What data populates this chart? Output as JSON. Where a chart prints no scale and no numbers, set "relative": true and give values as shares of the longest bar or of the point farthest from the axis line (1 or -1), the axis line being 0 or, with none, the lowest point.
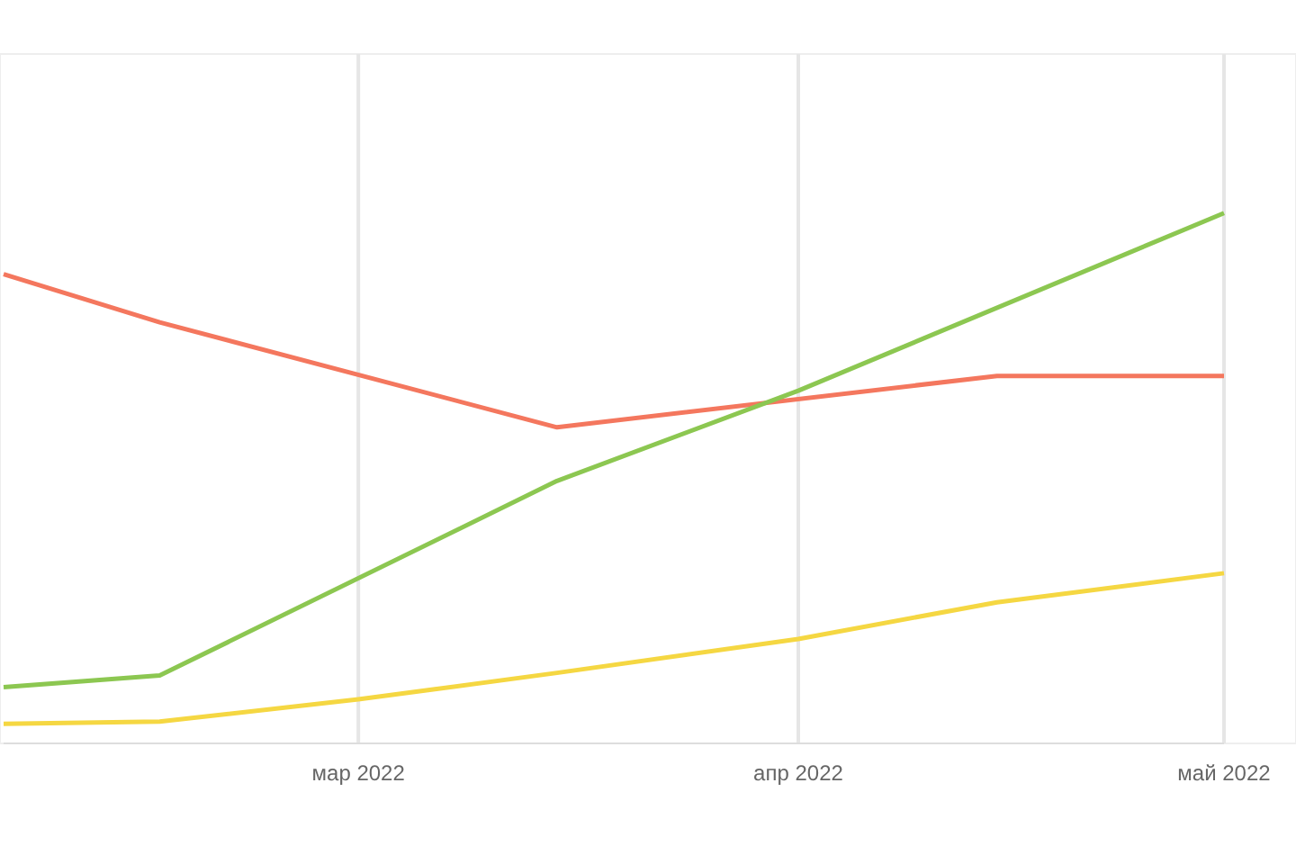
{
  "chart_data": {
    "type": "line",
    "relative": true,
    "xlim": [
      "2022-02-04",
      "2022-05-01"
    ],
    "xticks": [
      {
        "value": "2022-03-01",
        "label": "мар 2022"
      },
      {
        "value": "2022-04-01",
        "label": "апр 2022"
      },
      {
        "value": "2022-05-01",
        "label": "май 2022"
      }
    ],
    "grid": "x",
    "series": [
      {
        "color": "#f4775e",
        "x": [
          "2022-02-04",
          "2022-02-15",
          "2022-03-15",
          "2022-04-15",
          "2022-05-01"
        ],
        "values": [
          0.885,
          0.794,
          0.596,
          0.693,
          0.693
        ]
      },
      {
        "color": "#8cc751",
        "x": [
          "2022-02-04",
          "2022-02-15",
          "2022-03-15",
          "2022-04-01",
          "2022-05-01"
        ],
        "values": [
          0.106,
          0.128,
          0.495,
          0.665,
          1
        ]
      },
      {
        "color": "#f5d742",
        "x": [
          "2022-02-04",
          "2022-02-15",
          "2022-03-01",
          "2022-03-15",
          "2022-04-01",
          "2022-04-15",
          "2022-05-01"
        ],
        "values": [
          0.037,
          0.041,
          0.083,
          0.133,
          0.197,
          0.266,
          0.321
        ]
      }
    ]
  }
}
